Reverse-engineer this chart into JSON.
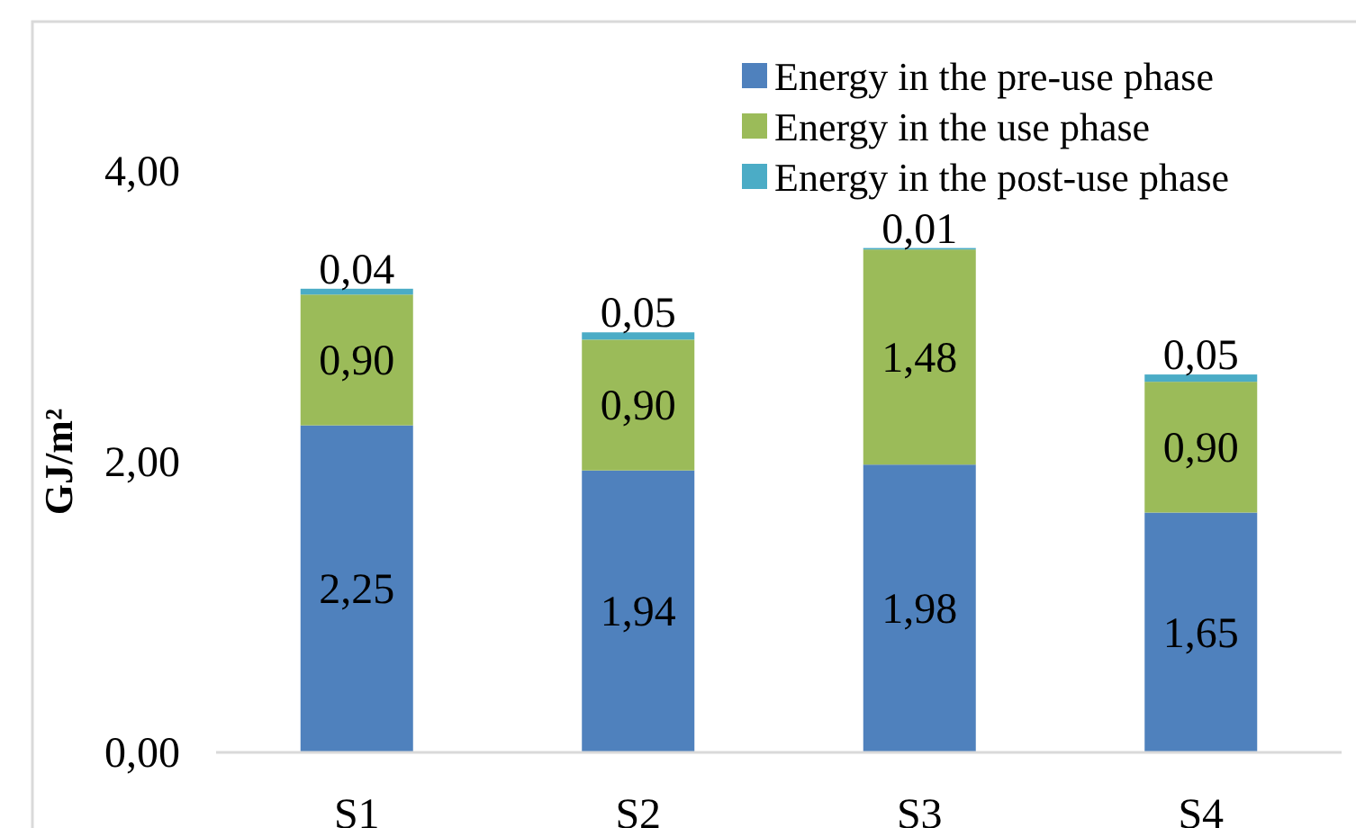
{
  "chart_data": {
    "type": "bar",
    "stacked": true,
    "ylabel": "GJ/m²",
    "categories": [
      "S1",
      "S2",
      "S3",
      "S4"
    ],
    "series": [
      {
        "name": "Energy in the pre-use phase",
        "color": "#4f81bd",
        "values": [
          2.25,
          1.94,
          1.98,
          1.65
        ],
        "value_labels": [
          "2,25",
          "1,94",
          "1,98",
          "1,65"
        ]
      },
      {
        "name": "Energy in the use phase",
        "color": "#9bbb59",
        "values": [
          0.9,
          0.9,
          1.48,
          0.9
        ],
        "value_labels": [
          "0,90",
          "0,90",
          "1,48",
          "0,90"
        ]
      },
      {
        "name": "Energy in the post-use phase",
        "color": "#4bacc6",
        "values": [
          0.04,
          0.05,
          0.01,
          0.05
        ],
        "value_labels": [
          "0,04",
          "0,05",
          "0,01",
          "0,05"
        ]
      }
    ],
    "ylim": [
      0,
      4
    ],
    "yticks": [
      {
        "value": 0,
        "label": "0,00"
      },
      {
        "value": 2,
        "label": "2,00"
      },
      {
        "value": 4,
        "label": "4,00"
      }
    ],
    "grid": false,
    "legend": "top right"
  }
}
